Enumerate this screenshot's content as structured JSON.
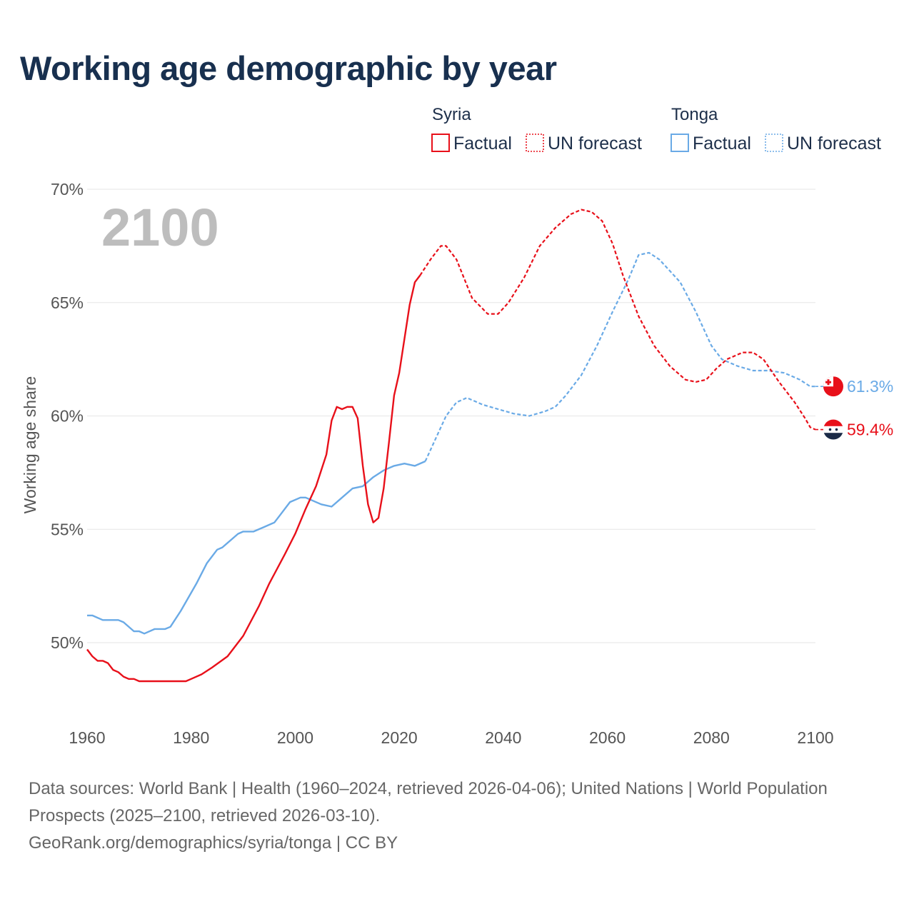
{
  "title": "Working age demographic by year",
  "colors": {
    "syria": "#e8101a",
    "tonga": "#6aaae6",
    "title": "#18304f",
    "grid": "#e6e6e6"
  },
  "chart_data": {
    "type": "line",
    "title": "Working age demographic by year",
    "xlabel": "",
    "ylabel": "Working age share",
    "xlim": [
      1960,
      2100
    ],
    "ylim": [
      46.5,
      70
    ],
    "x_ticks": [
      1960,
      1980,
      2000,
      2020,
      2040,
      2060,
      2080,
      2100
    ],
    "x_tick_labels": [
      "1960",
      "1980",
      "2000",
      "2020",
      "2040",
      "2060",
      "2080",
      "2100"
    ],
    "y_ticks": [
      50,
      55,
      60,
      65,
      70
    ],
    "y_tick_labels": [
      "50%",
      "55%",
      "60%",
      "65%",
      "70%"
    ],
    "current_year": "2100",
    "legend": {
      "groups": [
        {
          "country": "Syria",
          "series_color": "syria",
          "items": [
            "Factual",
            "UN forecast"
          ]
        },
        {
          "country": "Tonga",
          "series_color": "tonga",
          "items": [
            "Factual",
            "UN forecast"
          ]
        }
      ]
    },
    "series": [
      {
        "name": "Syria",
        "color": "syria",
        "end_label": "59.4%",
        "end_flag": "syria-flag",
        "factual": [
          [
            1960,
            49.7
          ],
          [
            1961,
            49.4
          ],
          [
            1962,
            49.2
          ],
          [
            1963,
            49.2
          ],
          [
            1964,
            49.1
          ],
          [
            1965,
            48.8
          ],
          [
            1966,
            48.7
          ],
          [
            1967,
            48.5
          ],
          [
            1968,
            48.4
          ],
          [
            1969,
            48.4
          ],
          [
            1970,
            48.3
          ],
          [
            1972,
            48.3
          ],
          [
            1975,
            48.3
          ],
          [
            1979,
            48.3
          ],
          [
            1980,
            48.4
          ],
          [
            1982,
            48.6
          ],
          [
            1984,
            48.9
          ],
          [
            1987,
            49.4
          ],
          [
            1990,
            50.3
          ],
          [
            1993,
            51.6
          ],
          [
            1995,
            52.6
          ],
          [
            1998,
            53.9
          ],
          [
            2000,
            54.8
          ],
          [
            2002,
            55.9
          ],
          [
            2004,
            56.9
          ],
          [
            2006,
            58.3
          ],
          [
            2007,
            59.8
          ],
          [
            2008,
            60.4
          ],
          [
            2009,
            60.3
          ],
          [
            2010,
            60.4
          ],
          [
            2011,
            60.4
          ],
          [
            2012,
            59.9
          ],
          [
            2013,
            57.8
          ],
          [
            2014,
            56.1
          ],
          [
            2015,
            55.3
          ],
          [
            2016,
            55.5
          ],
          [
            2017,
            56.8
          ],
          [
            2018,
            58.8
          ],
          [
            2019,
            60.9
          ],
          [
            2020,
            61.9
          ],
          [
            2021,
            63.4
          ],
          [
            2022,
            64.9
          ],
          [
            2023,
            65.9
          ],
          [
            2024,
            66.2
          ]
        ],
        "forecast": [
          [
            2024,
            66.2
          ],
          [
            2026,
            66.9
          ],
          [
            2028,
            67.5
          ],
          [
            2029,
            67.5
          ],
          [
            2031,
            66.9
          ],
          [
            2034,
            65.2
          ],
          [
            2037,
            64.5
          ],
          [
            2039,
            64.5
          ],
          [
            2041,
            65.0
          ],
          [
            2044,
            66.1
          ],
          [
            2047,
            67.5
          ],
          [
            2050,
            68.3
          ],
          [
            2053,
            68.9
          ],
          [
            2055,
            69.1
          ],
          [
            2057,
            69.0
          ],
          [
            2059,
            68.6
          ],
          [
            2061,
            67.6
          ],
          [
            2063,
            66.2
          ],
          [
            2066,
            64.4
          ],
          [
            2069,
            63.1
          ],
          [
            2072,
            62.2
          ],
          [
            2075,
            61.6
          ],
          [
            2077,
            61.5
          ],
          [
            2079,
            61.6
          ],
          [
            2081,
            62.1
          ],
          [
            2083,
            62.5
          ],
          [
            2086,
            62.8
          ],
          [
            2088,
            62.8
          ],
          [
            2090,
            62.5
          ],
          [
            2093,
            61.5
          ],
          [
            2096,
            60.6
          ],
          [
            2098,
            59.9
          ],
          [
            2099,
            59.5
          ],
          [
            2100,
            59.4
          ]
        ]
      },
      {
        "name": "Tonga",
        "color": "tonga",
        "end_label": "61.3%",
        "end_flag": "tonga-flag",
        "factual": [
          [
            1960,
            51.2
          ],
          [
            1961,
            51.2
          ],
          [
            1963,
            51.0
          ],
          [
            1966,
            51.0
          ],
          [
            1967,
            50.9
          ],
          [
            1969,
            50.5
          ],
          [
            1970,
            50.5
          ],
          [
            1971,
            50.4
          ],
          [
            1973,
            50.6
          ],
          [
            1975,
            50.6
          ],
          [
            1976,
            50.7
          ],
          [
            1978,
            51.4
          ],
          [
            1981,
            52.6
          ],
          [
            1983,
            53.5
          ],
          [
            1985,
            54.1
          ],
          [
            1986,
            54.2
          ],
          [
            1989,
            54.8
          ],
          [
            1990,
            54.9
          ],
          [
            1992,
            54.9
          ],
          [
            1994,
            55.1
          ],
          [
            1996,
            55.3
          ],
          [
            1997,
            55.6
          ],
          [
            1999,
            56.2
          ],
          [
            2001,
            56.4
          ],
          [
            2002,
            56.4
          ],
          [
            2005,
            56.1
          ],
          [
            2007,
            56.0
          ],
          [
            2009,
            56.4
          ],
          [
            2011,
            56.8
          ],
          [
            2013,
            56.9
          ],
          [
            2015,
            57.3
          ],
          [
            2017,
            57.6
          ],
          [
            2019,
            57.8
          ],
          [
            2021,
            57.9
          ],
          [
            2023,
            57.8
          ],
          [
            2025,
            58.0
          ]
        ],
        "forecast": [
          [
            2025,
            58.0
          ],
          [
            2027,
            59.0
          ],
          [
            2029,
            60.0
          ],
          [
            2031,
            60.6
          ],
          [
            2033,
            60.8
          ],
          [
            2036,
            60.5
          ],
          [
            2039,
            60.3
          ],
          [
            2042,
            60.1
          ],
          [
            2045,
            60.0
          ],
          [
            2048,
            60.2
          ],
          [
            2050,
            60.4
          ],
          [
            2052,
            60.9
          ],
          [
            2055,
            61.8
          ],
          [
            2058,
            63.1
          ],
          [
            2061,
            64.6
          ],
          [
            2064,
            66.0
          ],
          [
            2066,
            67.1
          ],
          [
            2068,
            67.2
          ],
          [
            2070,
            66.9
          ],
          [
            2074,
            65.9
          ],
          [
            2077,
            64.6
          ],
          [
            2080,
            63.1
          ],
          [
            2082,
            62.5
          ],
          [
            2085,
            62.2
          ],
          [
            2088,
            62.0
          ],
          [
            2091,
            62.0
          ],
          [
            2094,
            61.9
          ],
          [
            2097,
            61.6
          ],
          [
            2099,
            61.3
          ],
          [
            2100,
            61.3
          ]
        ]
      }
    ]
  },
  "footer": {
    "sources": "Data sources: World Bank | Health (1960–2024, retrieved 2026-04-06); United Nations | World Population Prospects (2025–2100, retrieved 2026-03-10).",
    "credit": "GeoRank.org/demographics/syria/tonga | CC BY"
  }
}
